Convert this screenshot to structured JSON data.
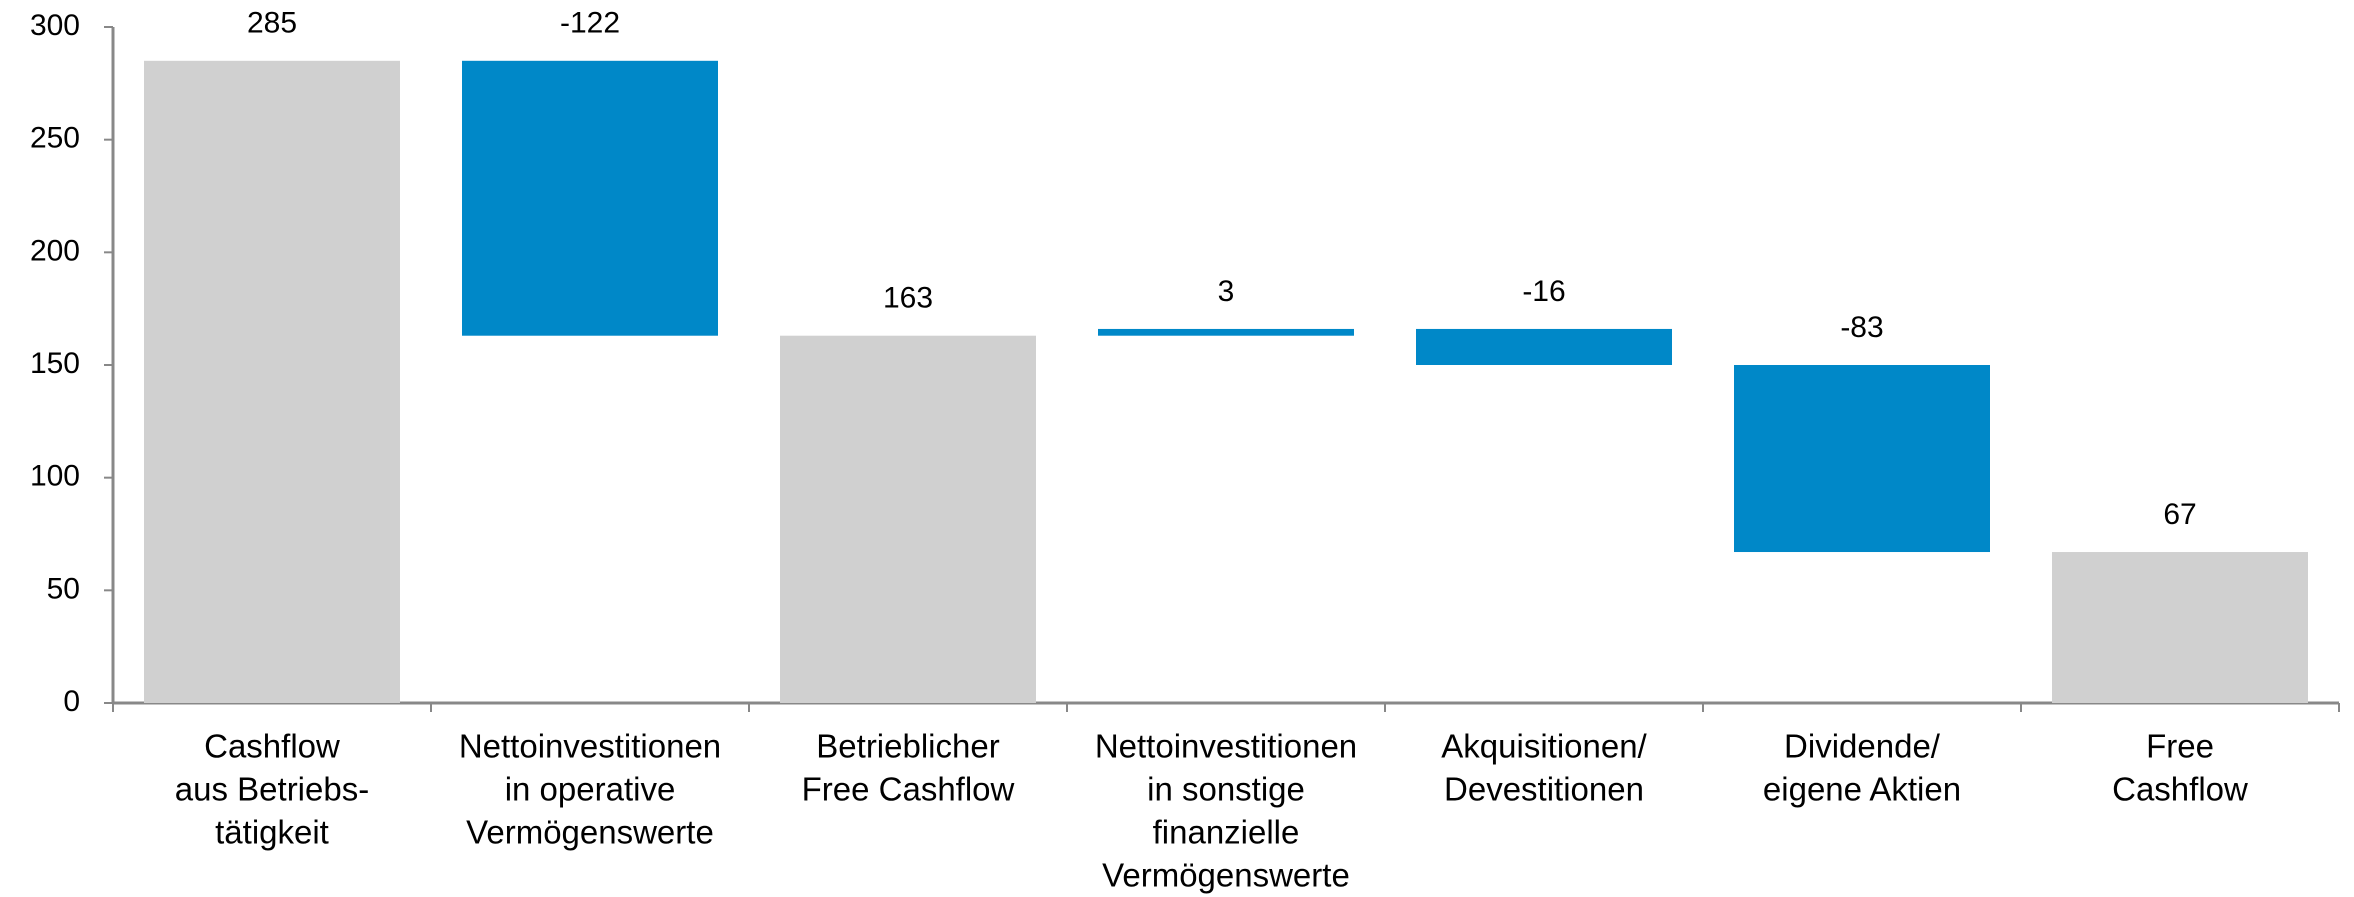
{
  "chart_data": {
    "type": "waterfall",
    "categories": [
      [
        "Cashflow",
        "aus Betriebs-",
        "tätigkeit"
      ],
      [
        "Nettoinvestitionen",
        "in operative",
        "Vermögenswerte"
      ],
      [
        "Betrieblicher",
        "Free Cashflow"
      ],
      [
        "Nettoinvestitionen",
        "in sonstige",
        "finanzielle",
        "Vermögenswerte"
      ],
      [
        "Akquisitionen/",
        "Devestitionen"
      ],
      [
        "Dividende/",
        "eigene Aktien"
      ],
      [
        "Free",
        "Cashflow"
      ]
    ],
    "values": [
      285,
      -122,
      163,
      3,
      -16,
      -83,
      67
    ],
    "totals": [
      true,
      false,
      true,
      false,
      false,
      false,
      true
    ],
    "total_color": "#d0d0d0",
    "change_color": "#0088c8",
    "ylim": [
      0,
      300
    ],
    "yticks": [
      0,
      50,
      100,
      150,
      200,
      250,
      300
    ]
  }
}
